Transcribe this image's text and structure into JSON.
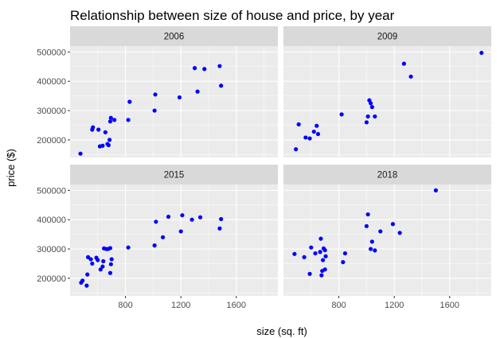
{
  "chart_data": {
    "type": "scatter",
    "title": "Relationship between size of house and price, by year",
    "xlabel": "size (sq. ft)",
    "ylabel": "price ($)",
    "xlim": [
      400,
      1900
    ],
    "ylim": [
      140000,
      520000
    ],
    "x_ticks": [
      800,
      1200,
      1600
    ],
    "x_tick_labels": [
      "800",
      "1200",
      "1600"
    ],
    "y_ticks": [
      200000,
      300000,
      400000,
      500000
    ],
    "y_tick_labels": [
      "200000",
      "300000",
      "400000",
      "500000"
    ],
    "grid": true,
    "legend": "none",
    "point_color": "#0000ff",
    "panel_background": "#ebebeb",
    "strip_background": "#d9d9d9",
    "panels": [
      {
        "label": "2006",
        "points": [
          [
            475,
            153000
          ],
          [
            560,
            235000
          ],
          [
            565,
            243000
          ],
          [
            605,
            235000
          ],
          [
            615,
            178000
          ],
          [
            635,
            180000
          ],
          [
            655,
            226000
          ],
          [
            670,
            186000
          ],
          [
            678,
            182000
          ],
          [
            685,
            200000
          ],
          [
            690,
            263000
          ],
          [
            695,
            275000
          ],
          [
            720,
            268000
          ],
          [
            820,
            268000
          ],
          [
            830,
            330000
          ],
          [
            1010,
            300000
          ],
          [
            1015,
            355000
          ],
          [
            1190,
            345000
          ],
          [
            1300,
            445000
          ],
          [
            1320,
            365000
          ],
          [
            1370,
            442000
          ],
          [
            1480,
            452000
          ],
          [
            1490,
            385000
          ]
        ]
      },
      {
        "label": "2009",
        "points": [
          [
            490,
            168000
          ],
          [
            510,
            253000
          ],
          [
            560,
            208000
          ],
          [
            590,
            205000
          ],
          [
            620,
            228000
          ],
          [
            640,
            248000
          ],
          [
            650,
            220000
          ],
          [
            820,
            287000
          ],
          [
            1000,
            260000
          ],
          [
            1010,
            280000
          ],
          [
            1020,
            335000
          ],
          [
            1030,
            325000
          ],
          [
            1040,
            312000
          ],
          [
            1060,
            280000
          ],
          [
            1270,
            460000
          ],
          [
            1320,
            416000
          ],
          [
            1830,
            497000
          ]
        ]
      },
      {
        "label": "2015",
        "points": [
          [
            480,
            185000
          ],
          [
            490,
            192000
          ],
          [
            520,
            175000
          ],
          [
            525,
            213000
          ],
          [
            530,
            272000
          ],
          [
            550,
            265000
          ],
          [
            560,
            250000
          ],
          [
            590,
            270000
          ],
          [
            600,
            262000
          ],
          [
            620,
            230000
          ],
          [
            635,
            240000
          ],
          [
            640,
            258000
          ],
          [
            645,
            302000
          ],
          [
            660,
            300000
          ],
          [
            675,
            300000
          ],
          [
            690,
            303000
          ],
          [
            690,
            218000
          ],
          [
            695,
            248000
          ],
          [
            700,
            265000
          ],
          [
            820,
            305000
          ],
          [
            1010,
            312000
          ],
          [
            1020,
            393000
          ],
          [
            1070,
            340000
          ],
          [
            1110,
            410000
          ],
          [
            1200,
            360000
          ],
          [
            1210,
            415000
          ],
          [
            1280,
            400000
          ],
          [
            1340,
            408000
          ],
          [
            1480,
            370000
          ],
          [
            1490,
            402000
          ]
        ]
      },
      {
        "label": "2018",
        "points": [
          [
            480,
            283000
          ],
          [
            550,
            272000
          ],
          [
            590,
            215000
          ],
          [
            600,
            305000
          ],
          [
            630,
            285000
          ],
          [
            665,
            290000
          ],
          [
            670,
            335000
          ],
          [
            675,
            210000
          ],
          [
            680,
            225000
          ],
          [
            685,
            262000
          ],
          [
            690,
            302000
          ],
          [
            700,
            230000
          ],
          [
            700,
            296000
          ],
          [
            705,
            275000
          ],
          [
            830,
            255000
          ],
          [
            845,
            285000
          ],
          [
            1000,
            378000
          ],
          [
            1010,
            418000
          ],
          [
            1030,
            300000
          ],
          [
            1040,
            325000
          ],
          [
            1060,
            295000
          ],
          [
            1100,
            360000
          ],
          [
            1190,
            385000
          ],
          [
            1240,
            355000
          ],
          [
            1500,
            500000
          ]
        ]
      }
    ]
  }
}
